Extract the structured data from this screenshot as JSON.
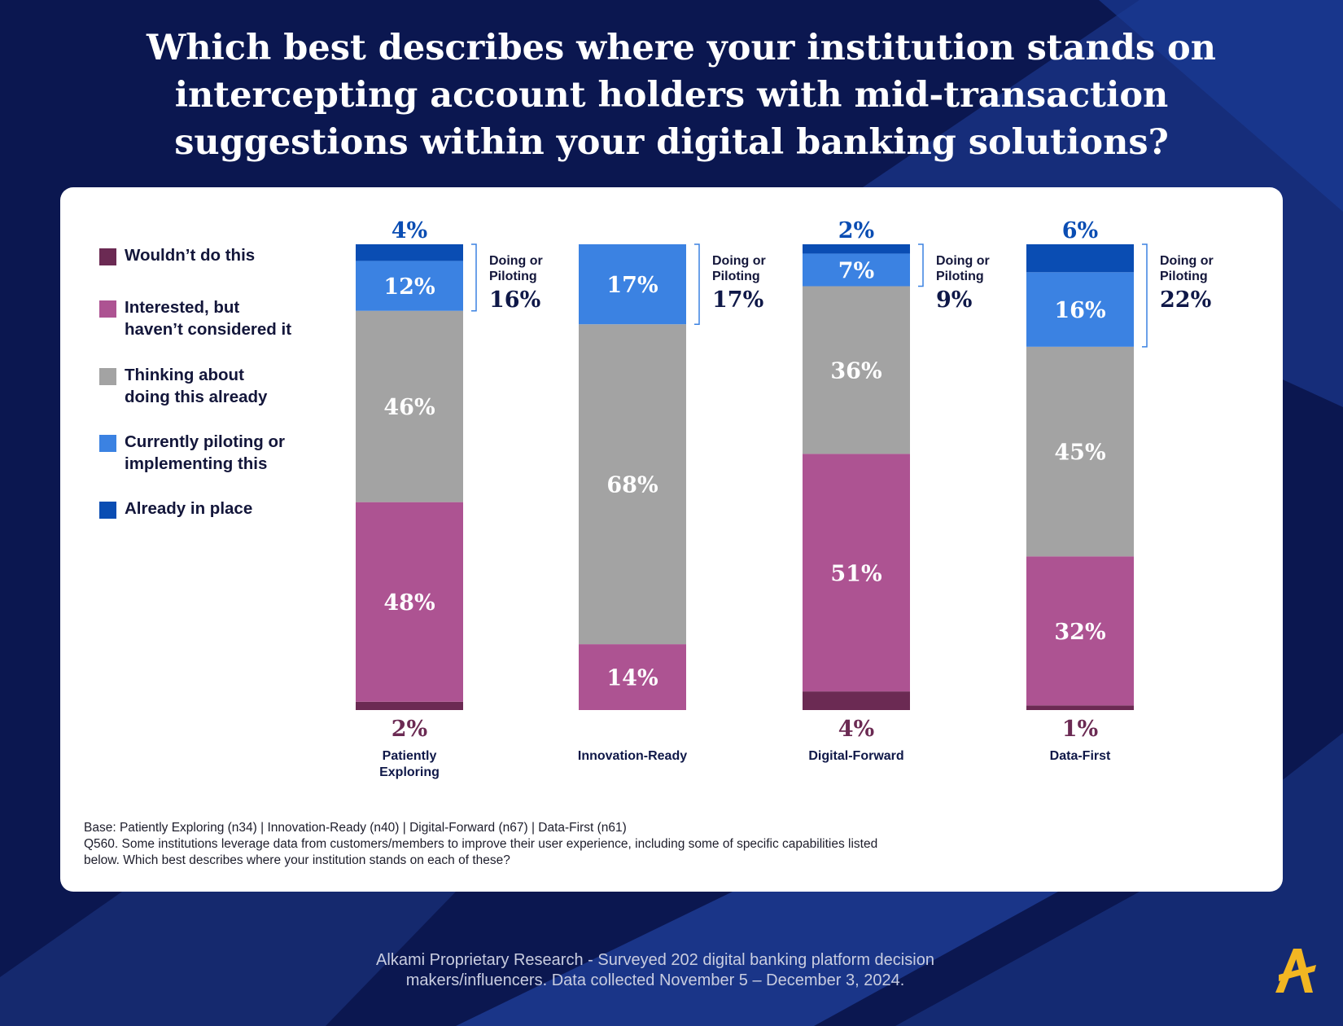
{
  "title_lines": [
    "Which best describes where your institution stands on",
    "intercepting account holders with mid-transaction",
    "suggestions within your digital banking solutions?"
  ],
  "legend": [
    {
      "label": "Wouldn’t do this",
      "color": "#6b2a53"
    },
    {
      "label": "Interested, but\nhaven’t considered it",
      "color": "#ad5392"
    },
    {
      "label": "Thinking about\ndoing this already",
      "color": "#a3a3a3"
    },
    {
      "label": "Currently piloting or\nimplementing this",
      "color": "#3b82e2"
    },
    {
      "label": "Already in place",
      "color": "#0a4db3"
    }
  ],
  "chart_data": {
    "type": "bar",
    "stacked": true,
    "categories": [
      "Patiently\nExploring",
      "Innovation-Ready",
      "Digital-Forward",
      "Data-First"
    ],
    "series": [
      {
        "name": "Wouldn’t do this",
        "values": [
          2,
          0,
          4,
          1
        ],
        "labels": [
          "2%",
          "",
          "4%",
          "1%"
        ],
        "color": "#6b2a53"
      },
      {
        "name": "Interested, but haven’t considered it",
        "values": [
          48,
          14,
          51,
          32
        ],
        "labels": [
          "48%",
          "14%",
          "51%",
          "32%"
        ],
        "color": "#ad5392"
      },
      {
        "name": "Thinking about doing this already",
        "values": [
          46,
          68,
          36,
          45
        ],
        "labels": [
          "46%",
          "68%",
          "36%",
          "45%"
        ],
        "color": "#a3a3a3"
      },
      {
        "name": "Currently piloting or implementing this",
        "values": [
          12,
          17,
          7,
          16
        ],
        "labels": [
          "12%",
          "17%",
          "7%",
          "16%"
        ],
        "color": "#3b82e2"
      },
      {
        "name": "Already in place",
        "values": [
          4,
          0,
          2,
          6
        ],
        "labels": [
          "4%",
          "",
          "2%",
          "6%"
        ],
        "color": "#0a4db3"
      }
    ],
    "bracket": {
      "caption": "Doing or\nPiloting",
      "values": [
        "16%",
        "17%",
        "9%",
        "22%"
      ]
    },
    "outside_label_colors": {
      "top": "#0a4db3",
      "bottom": "#6b2a53"
    },
    "grid": false,
    "legend_position": "left"
  },
  "base_note_lines": [
    "Base: Patiently Exploring (n34) | Innovation-Ready (n40) | Digital-Forward (n67) | Data-First (n61)",
    "Q560. Some institutions leverage data from customers/members to improve their user experience, including some of specific capabilities listed",
    "below. Which best describes where your institution stands on each of these?"
  ],
  "source_lines": [
    "Alkami Proprietary Research - Surveyed 202 digital banking platform decision",
    "makers/influencers. Data collected November 5 – December 3, 2024."
  ],
  "logo": {
    "letter": "A",
    "color": "#f2b622"
  }
}
